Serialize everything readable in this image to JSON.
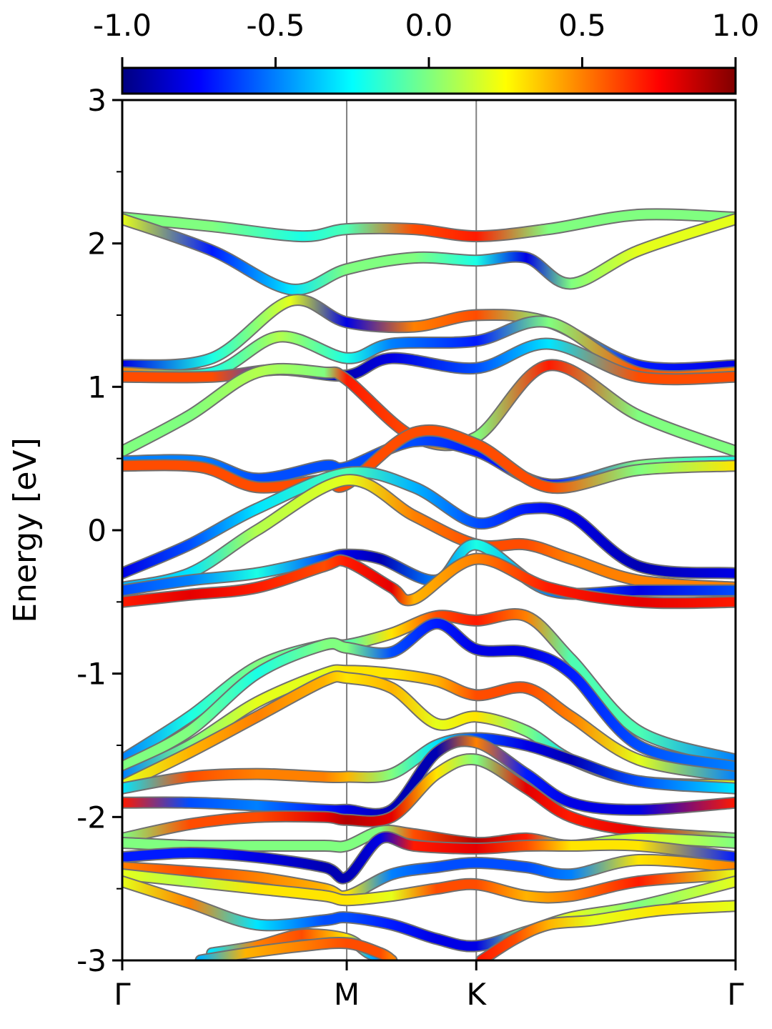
{
  "chart_data": {
    "type": "line",
    "ylabel": "Energy [eV]",
    "ylim": [
      -3,
      3
    ],
    "yticks": [
      "-3",
      "-2",
      "-1",
      "0",
      "1",
      "2",
      "3"
    ],
    "k_labels": [
      "Γ",
      "M",
      "K",
      "Γ"
    ],
    "k_positions": [
      0,
      1,
      1.577,
      2.732
    ],
    "colorbar": {
      "colormap": "jet",
      "range": [
        -1.0,
        1.0
      ],
      "ticks": [
        "-1.0",
        "-0.5",
        "0.0",
        "0.5",
        "1.0"
      ]
    },
    "grid": "vertical lines at high-symmetry points",
    "bands": [
      {
        "x": [
          0,
          0.4,
          0.8,
          1.0,
          1.3,
          1.577,
          1.9,
          2.3,
          2.732
        ],
        "y": [
          2.18,
          2.12,
          2.05,
          2.1,
          2.1,
          2.05,
          2.1,
          2.2,
          2.18
        ],
        "c": [
          0.0,
          0.0,
          -0.2,
          -0.1,
          0.6,
          0.7,
          0.0,
          0.0,
          0.0
        ]
      },
      {
        "x": [
          0,
          0.4,
          0.75,
          1.0,
          1.3,
          1.577,
          1.8,
          2.0,
          2.3,
          2.732
        ],
        "y": [
          2.17,
          1.95,
          1.68,
          1.82,
          1.9,
          1.88,
          1.9,
          1.72,
          1.95,
          2.17
        ],
        "c": [
          0.2,
          -0.7,
          -0.3,
          0.0,
          0.0,
          -0.2,
          -0.8,
          0.0,
          0.2,
          0.2
        ]
      },
      {
        "x": [
          0,
          0.4,
          0.75,
          1.0,
          1.3,
          1.577,
          1.9,
          2.3,
          2.732
        ],
        "y": [
          1.15,
          1.2,
          1.6,
          1.45,
          1.42,
          1.5,
          1.45,
          1.15,
          1.15
        ],
        "c": [
          -0.8,
          -0.2,
          0.2,
          -0.8,
          0.5,
          0.6,
          0.0,
          -0.7,
          -0.8
        ]
      },
      {
        "x": [
          0,
          0.4,
          0.7,
          1.0,
          1.2,
          1.577,
          1.9,
          2.3,
          2.732
        ],
        "y": [
          1.1,
          1.1,
          1.35,
          1.2,
          1.3,
          1.32,
          1.45,
          1.1,
          1.1
        ],
        "c": [
          0.5,
          -0.2,
          0.1,
          -0.2,
          -0.5,
          -0.7,
          0.0,
          0.6,
          0.5
        ]
      },
      {
        "x": [
          0,
          0.4,
          0.7,
          1.0,
          1.2,
          1.577,
          1.9,
          2.3,
          2.732
        ],
        "y": [
          1.07,
          1.07,
          1.12,
          1.08,
          1.2,
          1.13,
          1.3,
          1.07,
          1.07
        ],
        "c": [
          0.6,
          0.6,
          -0.6,
          -0.9,
          -0.8,
          -0.6,
          -0.3,
          0.6,
          0.6
        ]
      },
      {
        "x": [
          0,
          0.3,
          0.6,
          0.9,
          1.0,
          1.3,
          1.577,
          1.9,
          2.3,
          2.732
        ],
        "y": [
          0.55,
          0.8,
          1.1,
          1.1,
          1.05,
          0.65,
          0.65,
          1.15,
          0.8,
          0.55
        ],
        "c": [
          0.0,
          0.0,
          0.1,
          0.0,
          0.7,
          0.6,
          0.0,
          0.7,
          0.0,
          0.0
        ]
      },
      {
        "x": [
          0,
          0.35,
          0.6,
          0.9,
          1.0,
          1.3,
          1.577,
          1.9,
          2.3,
          2.732
        ],
        "y": [
          0.48,
          0.48,
          0.36,
          0.45,
          0.44,
          0.62,
          0.55,
          0.32,
          0.45,
          0.48
        ],
        "c": [
          -0.5,
          -0.5,
          -0.6,
          -0.6,
          -0.6,
          -0.6,
          -0.7,
          -0.7,
          0.0,
          -0.2
        ]
      },
      {
        "x": [
          0,
          0.35,
          0.6,
          0.9,
          1.0,
          1.3,
          1.577,
          1.9,
          2.3,
          2.732
        ],
        "y": [
          0.45,
          0.44,
          0.3,
          0.35,
          0.32,
          0.68,
          0.6,
          0.3,
          0.42,
          0.45
        ],
        "c": [
          0.6,
          0.6,
          0.6,
          0.6,
          0.6,
          0.6,
          0.6,
          0.6,
          0.0,
          0.3
        ]
      },
      {
        "x": [
          0,
          0.3,
          0.6,
          1.0,
          1.3,
          1.577,
          1.8,
          2.0,
          2.3,
          2.732
        ],
        "y": [
          -0.3,
          -0.1,
          0.15,
          0.4,
          0.3,
          0.05,
          0.15,
          0.1,
          -0.25,
          -0.3
        ],
        "c": [
          -0.8,
          -0.6,
          -0.3,
          -0.1,
          -0.4,
          -0.6,
          -0.7,
          -0.8,
          -0.9,
          -0.8
        ]
      },
      {
        "x": [
          0,
          0.3,
          0.6,
          1.0,
          1.3,
          1.577,
          1.8,
          2.0,
          2.3,
          2.732
        ],
        "y": [
          -0.4,
          -0.3,
          0.0,
          0.35,
          0.1,
          -0.1,
          -0.1,
          -0.2,
          -0.35,
          -0.4
        ],
        "c": [
          -0.4,
          -0.3,
          0.1,
          0.2,
          0.5,
          0.6,
          0.6,
          0.5,
          0.5,
          0.5
        ]
      },
      {
        "x": [
          0,
          0.3,
          0.6,
          0.9,
          1.0,
          1.15,
          1.4,
          1.577,
          1.9,
          2.3,
          2.732
        ],
        "y": [
          -0.42,
          -0.35,
          -0.3,
          -0.2,
          -0.17,
          -0.2,
          -0.35,
          -0.1,
          -0.42,
          -0.42,
          -0.42
        ],
        "c": [
          -0.6,
          -0.5,
          -0.2,
          -0.6,
          -0.8,
          -0.9,
          -0.5,
          -0.2,
          -0.5,
          -0.8,
          -0.6
        ]
      },
      {
        "x": [
          0,
          0.3,
          0.6,
          0.9,
          1.0,
          1.2,
          1.3,
          1.577,
          1.9,
          2.3,
          2.732
        ],
        "y": [
          -0.5,
          -0.45,
          -0.4,
          -0.25,
          -0.22,
          -0.4,
          -0.48,
          -0.2,
          -0.4,
          -0.5,
          -0.5
        ],
        "c": [
          0.7,
          0.8,
          0.7,
          0.6,
          0.7,
          0.8,
          0.4,
          0.5,
          0.7,
          0.8,
          0.7
        ]
      },
      {
        "x": [
          0,
          0.3,
          0.6,
          0.9,
          1.0,
          1.2,
          1.4,
          1.577,
          1.8,
          2.0,
          2.3,
          2.732
        ],
        "y": [
          -1.6,
          -1.3,
          -0.95,
          -0.8,
          -0.8,
          -0.72,
          -0.6,
          -0.63,
          -0.6,
          -0.9,
          -1.4,
          -1.6
        ],
        "c": [
          -0.5,
          -0.2,
          0.0,
          -0.1,
          -0.1,
          0.3,
          0.6,
          0.7,
          0.5,
          -0.1,
          -0.1,
          -0.5
        ]
      },
      {
        "x": [
          0,
          0.3,
          0.6,
          0.9,
          1.0,
          1.2,
          1.4,
          1.577,
          1.8,
          2.0,
          2.3,
          2.732
        ],
        "y": [
          -1.65,
          -1.4,
          -1.0,
          -0.8,
          -0.82,
          -0.85,
          -0.65,
          -0.83,
          -0.85,
          -1.0,
          -1.5,
          -1.65
        ],
        "c": [
          0.0,
          0.0,
          -0.2,
          0.0,
          0.0,
          -0.6,
          -0.7,
          -0.8,
          -0.8,
          -0.7,
          -0.6,
          -0.5
        ]
      },
      {
        "x": [
          0,
          0.3,
          0.6,
          0.9,
          1.0,
          1.2,
          1.4,
          1.577,
          1.8,
          2.0,
          2.3,
          2.732
        ],
        "y": [
          -1.72,
          -1.5,
          -1.2,
          -1.0,
          -0.98,
          -1.0,
          -1.05,
          -1.15,
          -1.1,
          -1.3,
          -1.6,
          -1.72
        ],
        "c": [
          -0.5,
          0.0,
          0.2,
          0.2,
          0.3,
          0.3,
          0.4,
          0.6,
          0.6,
          0.5,
          0.2,
          -0.5
        ]
      },
      {
        "x": [
          0,
          0.3,
          0.6,
          0.9,
          1.0,
          1.2,
          1.4,
          1.577,
          1.8,
          2.0,
          2.3,
          2.732
        ],
        "y": [
          -1.78,
          -1.55,
          -1.3,
          -1.05,
          -1.03,
          -1.1,
          -1.35,
          -1.3,
          -1.4,
          -1.6,
          -1.75,
          -1.78
        ],
        "c": [
          0.2,
          0.4,
          0.5,
          0.4,
          0.3,
          0.4,
          0.2,
          0.3,
          0.0,
          -0.3,
          0.3,
          0.2
        ]
      },
      {
        "x": [
          0,
          0.3,
          0.6,
          0.9,
          1.0,
          1.2,
          1.4,
          1.577,
          1.8,
          2.0,
          2.3,
          2.732
        ],
        "y": [
          -1.8,
          -1.72,
          -1.7,
          -1.72,
          -1.72,
          -1.7,
          -1.5,
          -1.45,
          -1.5,
          -1.6,
          -1.75,
          -1.8
        ],
        "c": [
          -0.3,
          0.6,
          0.5,
          0.5,
          0.4,
          0.0,
          -0.3,
          -0.6,
          -0.8,
          -0.9,
          -0.6,
          -0.3
        ]
      },
      {
        "x": [
          0,
          0.3,
          0.6,
          0.9,
          1.0,
          1.2,
          1.4,
          1.577,
          1.8,
          2.0,
          2.3,
          2.732
        ],
        "y": [
          -1.9,
          -1.9,
          -1.92,
          -1.95,
          -1.95,
          -1.95,
          -1.55,
          -1.48,
          -1.7,
          -1.9,
          -1.95,
          -1.9
        ],
        "c": [
          0.7,
          -0.6,
          -0.5,
          -0.7,
          -0.8,
          -0.9,
          -0.9,
          0.5,
          -0.7,
          -0.8,
          -0.8,
          0.7
        ]
      },
      {
        "x": [
          0,
          0.3,
          0.6,
          0.9,
          1.0,
          1.2,
          1.4,
          1.577,
          1.8,
          2.0,
          2.3,
          2.732
        ],
        "y": [
          -2.15,
          -2.05,
          -2.0,
          -2.0,
          -2.02,
          -2.0,
          -1.7,
          -1.6,
          -1.8,
          -2.0,
          -2.1,
          -2.15
        ],
        "c": [
          0.0,
          0.6,
          0.6,
          0.8,
          0.9,
          0.8,
          0.3,
          0.0,
          0.8,
          0.7,
          0.8,
          0.0
        ]
      },
      {
        "x": [
          0,
          0.3,
          0.6,
          0.9,
          1.0,
          1.15,
          1.3,
          1.577,
          1.8,
          2.0,
          2.3,
          2.732
        ],
        "y": [
          -2.18,
          -2.2,
          -2.2,
          -2.2,
          -2.2,
          -2.1,
          -2.12,
          -2.18,
          -2.15,
          -2.2,
          -2.15,
          -2.18
        ],
        "c": [
          0.0,
          0.0,
          0.0,
          0.0,
          0.0,
          0.0,
          0.6,
          0.9,
          0.7,
          0.0,
          0.2,
          0.0
        ]
      },
      {
        "x": [
          0,
          0.3,
          0.6,
          0.9,
          1.0,
          1.15,
          1.3,
          1.577,
          1.8,
          2.0,
          2.3,
          2.732
        ],
        "y": [
          -2.28,
          -2.25,
          -2.28,
          -2.35,
          -2.42,
          -2.15,
          -2.2,
          -2.22,
          -2.2,
          -2.2,
          -2.2,
          -2.28
        ],
        "c": [
          -0.7,
          -0.7,
          -0.8,
          -0.9,
          -0.9,
          -0.8,
          0.7,
          0.8,
          0.6,
          0.3,
          0.3,
          -0.7
        ]
      },
      {
        "x": [
          0,
          0.3,
          0.6,
          0.9,
          1.0,
          1.2,
          1.4,
          1.577,
          1.8,
          2.0,
          2.3,
          2.732
        ],
        "y": [
          -2.35,
          -2.38,
          -2.42,
          -2.5,
          -2.55,
          -2.4,
          -2.35,
          -2.32,
          -2.35,
          -2.4,
          -2.3,
          -2.35
        ],
        "c": [
          0.5,
          0.6,
          0.5,
          0.4,
          0.3,
          -0.5,
          -0.6,
          -0.6,
          -0.6,
          -0.5,
          0.3,
          0.5
        ]
      },
      {
        "x": [
          0,
          0.3,
          0.6,
          0.9,
          1.0,
          1.2,
          1.4,
          1.577,
          1.8,
          2.0,
          2.3,
          2.732
        ],
        "y": [
          -2.4,
          -2.45,
          -2.5,
          -2.55,
          -2.58,
          -2.55,
          -2.5,
          -2.47,
          -2.55,
          -2.55,
          -2.45,
          -2.4
        ],
        "c": [
          0.2,
          0.1,
          0.3,
          0.3,
          0.3,
          0.2,
          0.6,
          0.6,
          0.4,
          0.5,
          0.7,
          0.2
        ]
      },
      {
        "x": [
          0,
          0.3,
          0.6,
          0.9,
          1.0,
          1.2,
          1.4,
          1.577,
          1.8,
          2.0,
          2.3,
          2.732
        ],
        "y": [
          -2.45,
          -2.6,
          -2.75,
          -2.72,
          -2.7,
          -2.75,
          -2.85,
          -2.9,
          -2.8,
          -2.7,
          -2.62,
          -2.45
        ],
        "c": [
          0.2,
          0.5,
          -0.3,
          -0.6,
          -0.6,
          -0.7,
          -0.8,
          -0.8,
          0.0,
          0.2,
          0.0,
          0.2
        ]
      },
      {
        "x": [
          0.4,
          0.6,
          0.8,
          1.0,
          1.1,
          1.2
        ],
        "y": [
          -2.95,
          -2.9,
          -2.82,
          -2.85,
          -2.95,
          -3.0
        ],
        "c": [
          -0.3,
          0.5,
          0.6,
          0.3,
          -0.4,
          -0.6
        ]
      },
      {
        "x": [
          0.35,
          0.55,
          0.8,
          1.0,
          1.15,
          1.2
        ],
        "y": [
          -3.0,
          -2.95,
          -2.9,
          -2.88,
          -2.95,
          -3.0
        ],
        "c": [
          -0.4,
          0.4,
          0.5,
          0.6,
          0.6,
          0.5
        ]
      },
      {
        "x": [
          1.6,
          1.75,
          1.9,
          2.1,
          2.4,
          2.732
        ],
        "y": [
          -3.0,
          -2.85,
          -2.75,
          -2.72,
          -2.65,
          -2.62
        ],
        "c": [
          0.7,
          0.6,
          0.4,
          0.2,
          0.3,
          0.2
        ]
      }
    ]
  }
}
